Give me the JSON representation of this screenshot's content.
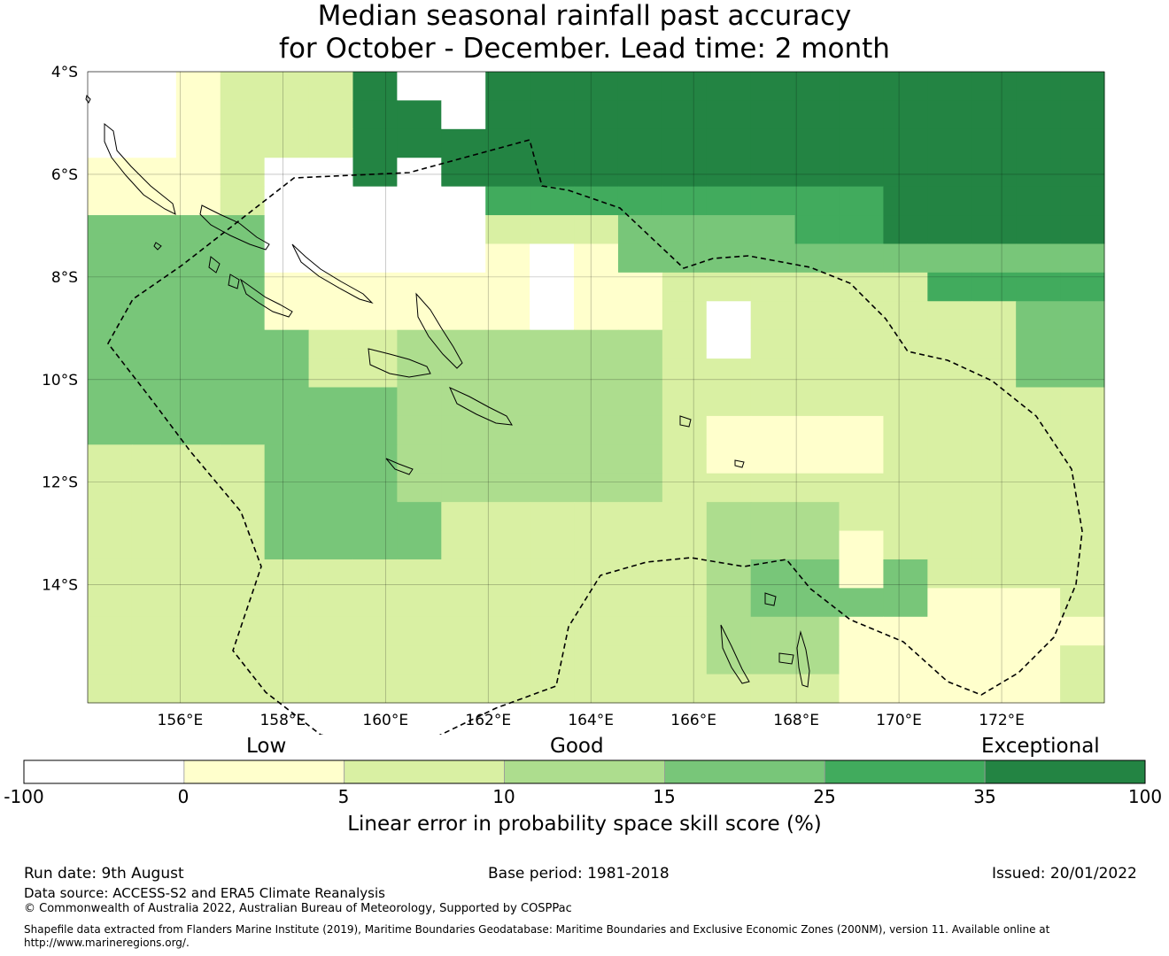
{
  "title": {
    "line1": "Median seasonal rainfall past accuracy",
    "line2": "for October - December. Lead time: 2 month"
  },
  "map": {
    "lat_labels": [
      "4°S",
      "6°S",
      "8°S",
      "10°S",
      "12°S",
      "14°S"
    ],
    "lon_labels": [
      "156°E",
      "158°E",
      "160°E",
      "162°E",
      "164°E",
      "166°E",
      "168°E",
      "170°E",
      "172°E"
    ],
    "lon_range_deg": [
      154.2,
      174.0
    ],
    "lat_range_deg": [
      -16.3,
      -4.0
    ],
    "grid": true,
    "boundary_style": "dashed",
    "skill_colors": [
      "#ffffff",
      "#ffffcc",
      "#d9f0a3",
      "#addd8e",
      "#78c679",
      "#41ab5d",
      "#238443"
    ]
  },
  "colorbar": {
    "categories": [
      "Low",
      "Good",
      "Exceptional"
    ],
    "ticks": [
      "-100",
      "0",
      "5",
      "10",
      "15",
      "25",
      "35",
      "100"
    ],
    "colors": [
      "#ffffff",
      "#ffffcc",
      "#d9f0a3",
      "#addd8e",
      "#78c679",
      "#41ab5d",
      "#238443"
    ],
    "label": "Linear error in probability space skill score (%)"
  },
  "footer": {
    "run_date": "Run date: 9th August",
    "base_period": "Base period: 1981-2018",
    "issued": "Issued: 20/01/2022",
    "data_source": "Data source: ACCESS-S2 and ERA5 Climate Reanalysis",
    "copyright": "© Commonwealth of Australia 2022, Australian Bureau of Meteorology, Supported by COSPPac",
    "shapefile": "Shapefile data extracted from Flanders Marine Institute (2019), Maritime Boundaries Geodatabase: Maritime Boundaries and Exclusive Economic Zones (200NM), version 11. Available online at http://www.marineregions.org/."
  }
}
